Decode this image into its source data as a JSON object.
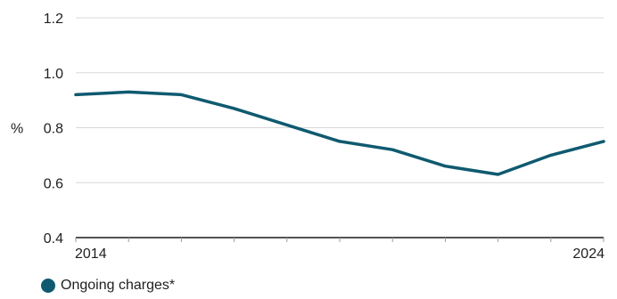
{
  "chart_data": {
    "type": "line",
    "title": "",
    "xlabel": "",
    "ylabel": "%",
    "x": [
      2014,
      2015,
      2016,
      2017,
      2018,
      2019,
      2020,
      2021,
      2022,
      2023,
      2024
    ],
    "x_tick_labels": [
      "2014",
      "2024"
    ],
    "y_ticks": [
      "0.4",
      "0.6",
      "0.8",
      "1.0",
      "1.2"
    ],
    "ylim": [
      0.4,
      1.2
    ],
    "xlim": [
      2014,
      2024
    ],
    "grid": "horizontal",
    "legend": "bottom-left",
    "series": [
      {
        "name": "Ongoing charges*",
        "color": "#0f5a70",
        "values": [
          0.92,
          0.93,
          0.92,
          0.87,
          0.81,
          0.75,
          0.72,
          0.66,
          0.63,
          0.7,
          0.75
        ]
      }
    ]
  }
}
